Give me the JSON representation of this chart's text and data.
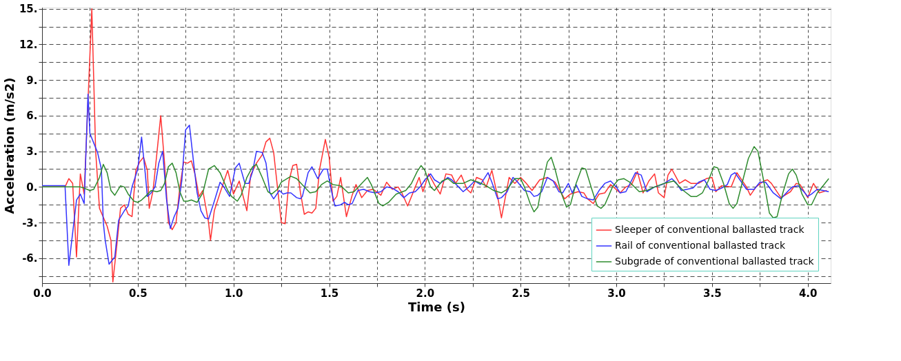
{
  "chart_data": {
    "type": "line",
    "xlabel": "Time (s)",
    "ylabel": "Acceleration (m/s2)",
    "xlim": [
      0,
      4.12
    ],
    "ylim": [
      -8.1,
      15.1
    ],
    "xticks": [
      {
        "value": 0,
        "label": "0.0"
      },
      {
        "value": 0.25,
        "label": null
      },
      {
        "value": 0.5,
        "label": "0.5"
      },
      {
        "value": 0.75,
        "label": null
      },
      {
        "value": 1,
        "label": "1.0"
      },
      {
        "value": 1.25,
        "label": null
      },
      {
        "value": 1.5,
        "label": "1.5"
      },
      {
        "value": 1.75,
        "label": null
      },
      {
        "value": 2,
        "label": "2.0"
      },
      {
        "value": 2.25,
        "label": null
      },
      {
        "value": 2.5,
        "label": "2.5"
      },
      {
        "value": 2.75,
        "label": null
      },
      {
        "value": 3,
        "label": "3.0"
      },
      {
        "value": 3.25,
        "label": null
      },
      {
        "value": 3.5,
        "label": "3.5"
      },
      {
        "value": 3.75,
        "label": null
      },
      {
        "value": 4,
        "label": "4.0"
      }
    ],
    "yticks": [
      {
        "value": -7.5,
        "label": null
      },
      {
        "value": -6,
        "label": "-6."
      },
      {
        "value": -4.5,
        "label": null
      },
      {
        "value": -3,
        "label": "-3."
      },
      {
        "value": -1.5,
        "label": null
      },
      {
        "value": 0,
        "label": "0."
      },
      {
        "value": 1.5,
        "label": null
      },
      {
        "value": 3,
        "label": "3."
      },
      {
        "value": 4.5,
        "label": null
      },
      {
        "value": 6,
        "label": "6."
      },
      {
        "value": 7.5,
        "label": null
      },
      {
        "value": 9,
        "label": "9."
      },
      {
        "value": 10.5,
        "label": null
      },
      {
        "value": 12,
        "label": "12."
      },
      {
        "value": 13.5,
        "label": null
      },
      {
        "value": 15,
        "label": "15."
      }
    ],
    "grid": true,
    "legend": "bottom right",
    "line_style": "solid",
    "marker": "none",
    "series": [
      {
        "name": "Sleeper of conventional ballasted track",
        "color": "#ff3333",
        "x": [
          0,
          0.06,
          0.12,
          0.14,
          0.16,
          0.18,
          0.2,
          0.22,
          0.26,
          0.28,
          0.3,
          0.34,
          0.36,
          0.37,
          0.39,
          0.41,
          0.43,
          0.45,
          0.47,
          0.49,
          0.51,
          0.53,
          0.55,
          0.56,
          0.58,
          0.62,
          0.64,
          0.66,
          0.68,
          0.7,
          0.72,
          0.74,
          0.76,
          0.78,
          0.8,
          0.82,
          0.84,
          0.87,
          0.88,
          0.9,
          0.93,
          0.97,
          1.0,
          1.03,
          1.07,
          1.09,
          1.12,
          1.15,
          1.17,
          1.19,
          1.21,
          1.25,
          1.27,
          1.29,
          1.31,
          1.33,
          1.35,
          1.37,
          1.39,
          1.41,
          1.43,
          1.45,
          1.48,
          1.5,
          1.52,
          1.54,
          1.56,
          1.59,
          1.62,
          1.64,
          1.67,
          1.7,
          1.73,
          1.77,
          1.8,
          1.83,
          1.86,
          1.88,
          1.91,
          1.95,
          1.97,
          1.99,
          2.02,
          2.05,
          2.08,
          2.11,
          2.14,
          2.16,
          2.19,
          2.22,
          2.24,
          2.27,
          2.3,
          2.32,
          2.35,
          2.38,
          2.4,
          2.44,
          2.47,
          2.5,
          2.53,
          2.56,
          2.6,
          2.64,
          2.68,
          2.73,
          2.76,
          2.8,
          2.83,
          2.85,
          2.88,
          2.91,
          2.94,
          2.97,
          3.02,
          3.05,
          3.08,
          3.11,
          3.14,
          3.17,
          3.2,
          3.22,
          3.25,
          3.27,
          3.29,
          3.33,
          3.36,
          3.39,
          3.43,
          3.47,
          3.5,
          3.52,
          3.55,
          3.6,
          3.63,
          3.68,
          3.7,
          3.73,
          3.77,
          3.79,
          3.81,
          3.86,
          3.91,
          3.94,
          3.96,
          4.0,
          4.03,
          4.06,
          4.1
        ],
        "values": [
          0,
          0,
          0,
          0.7,
          0.3,
          -5.9,
          1.1,
          -0.6,
          15,
          3,
          -1.8,
          -3.3,
          -4.5,
          -8,
          -5,
          -1.8,
          -1.5,
          -2.3,
          -2.5,
          1.4,
          2.1,
          2.5,
          1.4,
          -1.8,
          -0.3,
          6,
          2,
          -3,
          -3.6,
          -3,
          0,
          2.1,
          2,
          2.2,
          1,
          -0.8,
          -0.3,
          -3,
          -4.5,
          -2,
          -0.5,
          1.4,
          -0.6,
          0.5,
          -2,
          1,
          2,
          2.7,
          3.8,
          4.1,
          2.9,
          -3,
          -3.1,
          0.5,
          1.8,
          1.9,
          -0.5,
          -2.3,
          -2.1,
          -2.2,
          -1.8,
          1.5,
          4,
          2.5,
          -1.2,
          -0.8,
          0.8,
          -2.5,
          -0.7,
          0.2,
          -0.9,
          -0.3,
          -0.2,
          -0.7,
          0.4,
          -0.2,
          0,
          -0.5,
          -1.6,
          0,
          0.8,
          -0.4,
          1.1,
          0.2,
          -0.6,
          1.1,
          1,
          0.3,
          1,
          -0.2,
          -0.5,
          0.8,
          0.6,
          0,
          1.4,
          -0.8,
          -2.6,
          0.8,
          0.3,
          0.8,
          0.3,
          -0.3,
          0.6,
          0.8,
          0.4,
          -1,
          -0.6,
          -0.4,
          -0.5,
          -1,
          -1.4,
          -0.6,
          -0.5,
          0.2,
          -0.5,
          0,
          0.2,
          1.3,
          -0.5,
          0.5,
          1.1,
          -0.5,
          -0.9,
          1,
          1.5,
          0.3,
          0.6,
          0.3,
          0.3,
          0.7,
          0.8,
          -0.4,
          0.1,
          0,
          1.2,
          0,
          -0.7,
          0,
          0.5,
          0.6,
          0.3,
          -0.9,
          -0.4,
          0.3,
          0.2,
          -0.9,
          0.3,
          -0.5,
          -0.3
        ]
      },
      {
        "name": "Rail of conventional ballasted track",
        "color": "#3333ff",
        "x": [
          0,
          0.06,
          0.12,
          0.14,
          0.18,
          0.2,
          0.22,
          0.24,
          0.25,
          0.29,
          0.31,
          0.32,
          0.33,
          0.35,
          0.37,
          0.38,
          0.4,
          0.43,
          0.45,
          0.47,
          0.5,
          0.52,
          0.54,
          0.55,
          0.57,
          0.59,
          0.61,
          0.63,
          0.65,
          0.67,
          0.69,
          0.71,
          0.73,
          0.75,
          0.77,
          0.79,
          0.81,
          0.83,
          0.85,
          0.87,
          0.9,
          0.93,
          0.95,
          0.98,
          1.01,
          1.03,
          1.06,
          1.08,
          1.1,
          1.12,
          1.15,
          1.17,
          1.19,
          1.21,
          1.24,
          1.26,
          1.28,
          1.3,
          1.33,
          1.35,
          1.36,
          1.39,
          1.41,
          1.44,
          1.47,
          1.49,
          1.51,
          1.53,
          1.56,
          1.58,
          1.6,
          1.62,
          1.65,
          1.68,
          1.71,
          1.74,
          1.77,
          1.8,
          1.83,
          1.86,
          1.89,
          1.92,
          1.95,
          1.98,
          2,
          2.03,
          2.05,
          2.08,
          2.12,
          2.14,
          2.17,
          2.2,
          2.23,
          2.26,
          2.29,
          2.33,
          2.35,
          2.38,
          2.4,
          2.43,
          2.46,
          2.48,
          2.52,
          2.55,
          2.57,
          2.59,
          2.61,
          2.64,
          2.67,
          2.7,
          2.72,
          2.75,
          2.77,
          2.79,
          2.82,
          2.85,
          2.88,
          2.91,
          2.94,
          2.97,
          3,
          3.02,
          3.05,
          3.1,
          3.13,
          3.16,
          3.2,
          3.24,
          3.29,
          3.31,
          3.34,
          3.37,
          3.4,
          3.43,
          3.46,
          3.49,
          3.52,
          3.55,
          3.58,
          3.6,
          3.62,
          3.65,
          3.68,
          3.72,
          3.75,
          3.78,
          3.82,
          3.86,
          3.9,
          3.92,
          3.95,
          3.98,
          4,
          4.02,
          4.05,
          4.08,
          4.11
        ],
        "values": [
          0.1,
          0.1,
          0.1,
          -6.6,
          -1.1,
          -0.6,
          -1.4,
          7.8,
          4.5,
          2.9,
          1.5,
          -3,
          -4.5,
          -6.5,
          -6.1,
          -5.9,
          -2.8,
          -2,
          -1.6,
          0,
          1.5,
          4.2,
          1,
          -0.8,
          -0.5,
          0,
          2,
          3,
          -1,
          -3.5,
          -2.5,
          -1.8,
          0.5,
          4.8,
          5.2,
          2.3,
          -0.5,
          -2,
          -2.6,
          -2.7,
          -1.2,
          0.4,
          0,
          -0.8,
          1.6,
          2,
          0.3,
          0.3,
          1.3,
          3,
          2.9,
          2,
          -0.5,
          -1,
          -0.3,
          -0.6,
          -0.5,
          -0.5,
          -0.9,
          -1,
          -0.8,
          1.2,
          1.7,
          0.7,
          1.5,
          1.5,
          -0.2,
          -1.6,
          -1.5,
          -1.3,
          -1.5,
          -1.4,
          -0.3,
          -0.2,
          -0.4,
          -0.5,
          -0.4,
          0,
          -0.1,
          -0.4,
          -0.9,
          -0.5,
          -0.4,
          0.1,
          0.6,
          1.1,
          0.6,
          0.3,
          0.8,
          0.6,
          0.1,
          -0.4,
          0,
          0.5,
          0.2,
          1.2,
          0.4,
          -1,
          -0.9,
          -0.4,
          0.8,
          0.5,
          -0.3,
          -0.4,
          -0.8,
          -0.7,
          -0.4,
          0.8,
          0.5,
          -0.4,
          -0.5,
          0.3,
          -0.5,
          0.2,
          -0.8,
          -1,
          -1.1,
          -0.3,
          0.3,
          0.5,
          0,
          -0.5,
          -0.4,
          1.2,
          1,
          -0.4,
          0,
          0.2,
          0.7,
          0.4,
          -0.3,
          -0.2,
          -0.1,
          0.4,
          0.6,
          -0.2,
          -0.3,
          -0.1,
          0.2,
          1,
          1.2,
          0.5,
          -0.2,
          -0.2,
          0.4,
          0.4,
          -0.5,
          -1,
          -0.3,
          0,
          0.1,
          -0.4,
          -0.8,
          -0.6,
          -0.2,
          -0.3,
          -0.4
        ]
      },
      {
        "name": "Subgrade of conventional ballasted track",
        "color": "#2e8b2e",
        "x": [
          0,
          0.1,
          0.2,
          0.22,
          0.25,
          0.27,
          0.3,
          0.32,
          0.34,
          0.36,
          0.38,
          0.41,
          0.43,
          0.45,
          0.48,
          0.5,
          0.52,
          0.54,
          0.57,
          0.6,
          0.62,
          0.64,
          0.66,
          0.68,
          0.7,
          0.72,
          0.74,
          0.76,
          0.78,
          0.81,
          0.84,
          0.87,
          0.9,
          0.93,
          0.97,
          0.99,
          1.02,
          1.04,
          1.07,
          1.1,
          1.12,
          1.15,
          1.18,
          1.2,
          1.23,
          1.25,
          1.3,
          1.33,
          1.37,
          1.4,
          1.43,
          1.46,
          1.49,
          1.52,
          1.56,
          1.6,
          1.63,
          1.67,
          1.7,
          1.72,
          1.76,
          1.78,
          1.81,
          1.85,
          1.9,
          1.93,
          1.96,
          1.98,
          2,
          2.03,
          2.05,
          2.09,
          2.12,
          2.15,
          2.2,
          2.24,
          2.28,
          2.32,
          2.36,
          2.4,
          2.43,
          2.47,
          2.5,
          2.52,
          2.55,
          2.57,
          2.59,
          2.61,
          2.64,
          2.66,
          2.68,
          2.71,
          2.74,
          2.76,
          2.79,
          2.82,
          2.84,
          2.87,
          2.9,
          2.92,
          2.94,
          2.98,
          3.01,
          3.04,
          3.07,
          3.12,
          3.16,
          3.2,
          3.25,
          3.3,
          3.35,
          3.39,
          3.42,
          3.45,
          3.48,
          3.51,
          3.53,
          3.56,
          3.59,
          3.61,
          3.63,
          3.66,
          3.69,
          3.72,
          3.74,
          3.77,
          3.8,
          3.82,
          3.84,
          3.87,
          3.9,
          3.92,
          3.94,
          3.97,
          4,
          4.02,
          4.05,
          4.09,
          4.11
        ],
        "values": [
          0,
          0,
          0,
          -0.1,
          -0.3,
          -0.2,
          0.8,
          1.9,
          1.2,
          -0.3,
          -0.7,
          0.1,
          0,
          -0.6,
          -1.2,
          -1.3,
          -1.1,
          -0.8,
          -0.3,
          -0.4,
          -0.3,
          0.3,
          1.7,
          2,
          1.2,
          -0.4,
          -1.2,
          -1.2,
          -1.1,
          -1.3,
          -0.5,
          1.5,
          1.8,
          1.2,
          -0.3,
          -0.8,
          -1.2,
          -0.7,
          0.8,
          1.7,
          1.9,
          0.8,
          -0.4,
          -0.6,
          -0.2,
          0.4,
          0.9,
          0.7,
          0,
          -0.5,
          -0.4,
          0.2,
          0.5,
          0.2,
          0.1,
          -0.5,
          -0.4,
          0.3,
          0.8,
          0.2,
          -1.4,
          -1.6,
          -1.3,
          -0.6,
          -0.3,
          0.3,
          1.3,
          1.8,
          1.4,
          0,
          -0.3,
          0.5,
          0.7,
          0.3,
          0.3,
          0.6,
          0.4,
          0.1,
          -0.3,
          -0.5,
          -0.2,
          0.7,
          0.7,
          0,
          -1.4,
          -2.1,
          -1.7,
          0,
          2.1,
          2.5,
          1.5,
          -0.4,
          -1.7,
          -1.5,
          0.3,
          1.6,
          1.5,
          -0.1,
          -1.6,
          -1.8,
          -1.5,
          0,
          0.6,
          0.7,
          0.4,
          -0.4,
          -0.3,
          0,
          0.3,
          0.5,
          -0.3,
          -0.8,
          -0.8,
          -0.5,
          0.5,
          1.7,
          1.6,
          0.3,
          -1.4,
          -1.8,
          -1.4,
          0.5,
          2.4,
          3.4,
          3,
          0.5,
          -2.2,
          -2.6,
          -2.5,
          -0.5,
          1.1,
          1.5,
          1,
          -0.6,
          -1.5,
          -1.5,
          -0.5,
          0.3,
          0.7
        ]
      }
    ]
  }
}
